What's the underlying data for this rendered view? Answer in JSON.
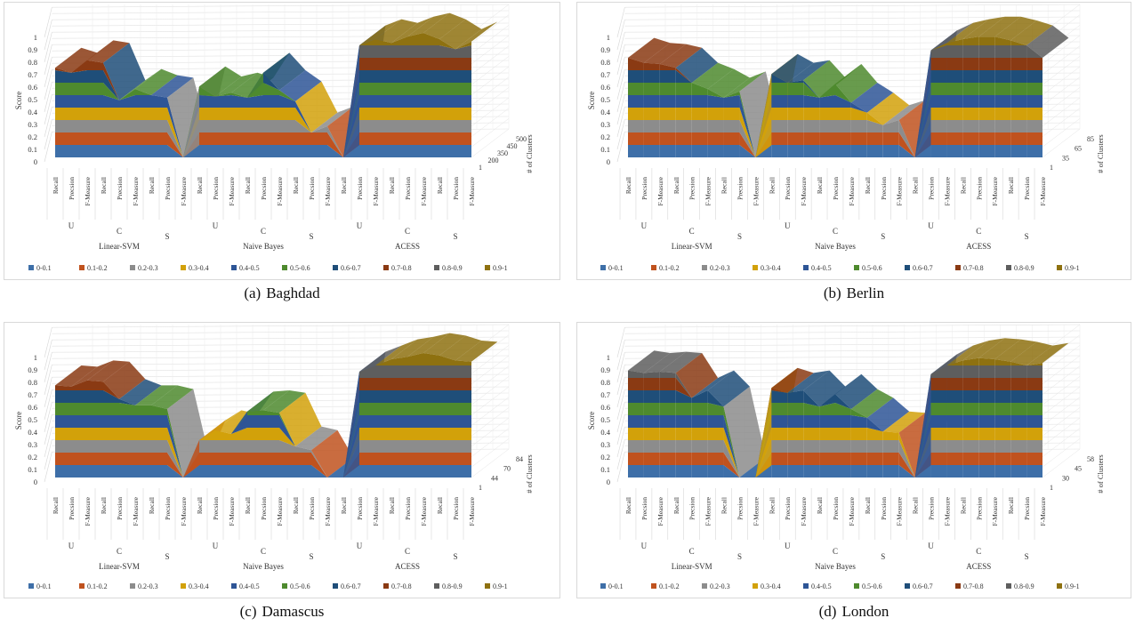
{
  "shared": {
    "y_axis_label": "Score",
    "z_axis_label": "# of Clusters",
    "y_ticks": [
      "0",
      "0.1",
      "0.2",
      "0.3",
      "0.4",
      "0.5",
      "0.6",
      "0.7",
      "0.8",
      "0.9",
      "1"
    ],
    "metric_labels": [
      "Recall",
      "Precsion",
      "F-Measure",
      "Recall",
      "Precsion",
      "F-Measure",
      "Recall",
      "Precsion",
      "F-Measure"
    ],
    "set_labels": [
      "U",
      "C",
      "S"
    ],
    "legend": [
      "0-0.1",
      "0.1-0.2",
      "0.2-0.3",
      "0.3-0.4",
      "0.4-0.5",
      "0.5-0.6",
      "0.6-0.7",
      "0.7-0.8",
      "0.8-0.9",
      "0.9-1"
    ],
    "band_colors": [
      "#3E6FA8",
      "#C0521E",
      "#8C8C8C",
      "#D2A10A",
      "#2E5596",
      "#4E8A2E",
      "#1F4E79",
      "#8A3A13",
      "#5E5E5E",
      "#8E7110"
    ]
  },
  "chart_data": [
    {
      "type": "surface",
      "caption_tag": "(a)",
      "caption_name": "Baghdad",
      "ylabel": "Score",
      "zlabel": "# of Clusters",
      "ylim": [
        0,
        1
      ],
      "z_ticks": [
        "1",
        "200",
        "350",
        "450",
        "500"
      ],
      "groups": [
        {
          "label": "Linear-SVM",
          "values": [
            0.72,
            0.68,
            0.78,
            0.76,
            0.46,
            0.55,
            0.5,
            0.48,
            0.0
          ]
        },
        {
          "label": "Naive Bayes",
          "values": [
            0.57,
            0.49,
            0.52,
            0.48,
            0.68,
            0.54,
            0.45,
            0.2,
            0.25
          ]
        },
        {
          "label": "ACESS",
          "values": [
            0.0,
            0.9,
            0.95,
            0.92,
            0.97,
            1.0,
            0.95,
            0.87,
            0.93
          ]
        }
      ]
    },
    {
      "type": "surface",
      "caption_tag": "(b)",
      "caption_name": "Berlin",
      "ylabel": "Score",
      "zlabel": "# of Clusters",
      "ylim": [
        0,
        1
      ],
      "z_ticks": [
        "1",
        "35",
        "65",
        "85"
      ],
      "groups": [
        {
          "label": "Linear-SVM",
          "values": [
            0.8,
            0.76,
            0.75,
            0.72,
            0.6,
            0.55,
            0.48,
            0.53,
            0.0
          ]
        },
        {
          "label": "Naive Bayes",
          "values": [
            0.67,
            0.6,
            0.62,
            0.48,
            0.59,
            0.44,
            0.36,
            0.26,
            0.3
          ]
        },
        {
          "label": "ACESS",
          "values": [
            0.0,
            0.86,
            0.92,
            0.95,
            0.97,
            0.97,
            0.94,
            0.9,
            0.8
          ]
        }
      ]
    },
    {
      "type": "surface",
      "caption_tag": "(c)",
      "caption_name": "Damascus",
      "ylabel": "Score",
      "zlabel": "# of Clusters",
      "ylim": [
        0,
        1
      ],
      "z_ticks": [
        "1",
        "44",
        "70",
        "84"
      ],
      "groups": [
        {
          "label": "Linear-SVM",
          "values": [
            0.74,
            0.73,
            0.78,
            0.77,
            0.63,
            0.58,
            0.58,
            0.55,
            0.0
          ]
        },
        {
          "label": "Naive Bayes",
          "values": [
            0.3,
            0.38,
            0.35,
            0.53,
            0.54,
            0.52,
            0.25,
            0.22,
            0.0
          ]
        },
        {
          "label": "ACESS",
          "values": [
            0.0,
            0.85,
            0.9,
            0.95,
            0.97,
            1.0,
            0.98,
            0.94,
            0.93
          ]
        }
      ]
    },
    {
      "type": "surface",
      "caption_tag": "(d)",
      "caption_name": "London",
      "ylabel": "Score",
      "zlabel": "# of Clusters",
      "ylim": [
        0,
        1
      ],
      "z_ticks": [
        "1",
        "30",
        "45",
        "58"
      ],
      "groups": [
        {
          "label": "Linear-SVM",
          "values": [
            0.86,
            0.84,
            0.85,
            0.84,
            0.64,
            0.7,
            0.57,
            0.0,
            0.0
          ]
        },
        {
          "label": "Naive Bayes",
          "values": [
            0.72,
            0.68,
            0.7,
            0.57,
            0.67,
            0.55,
            0.48,
            0.37,
            0.36
          ]
        },
        {
          "label": "ACESS",
          "values": [
            0.0,
            0.83,
            0.9,
            0.94,
            0.96,
            0.95,
            0.93,
            0.9,
            0.92
          ]
        }
      ]
    }
  ]
}
